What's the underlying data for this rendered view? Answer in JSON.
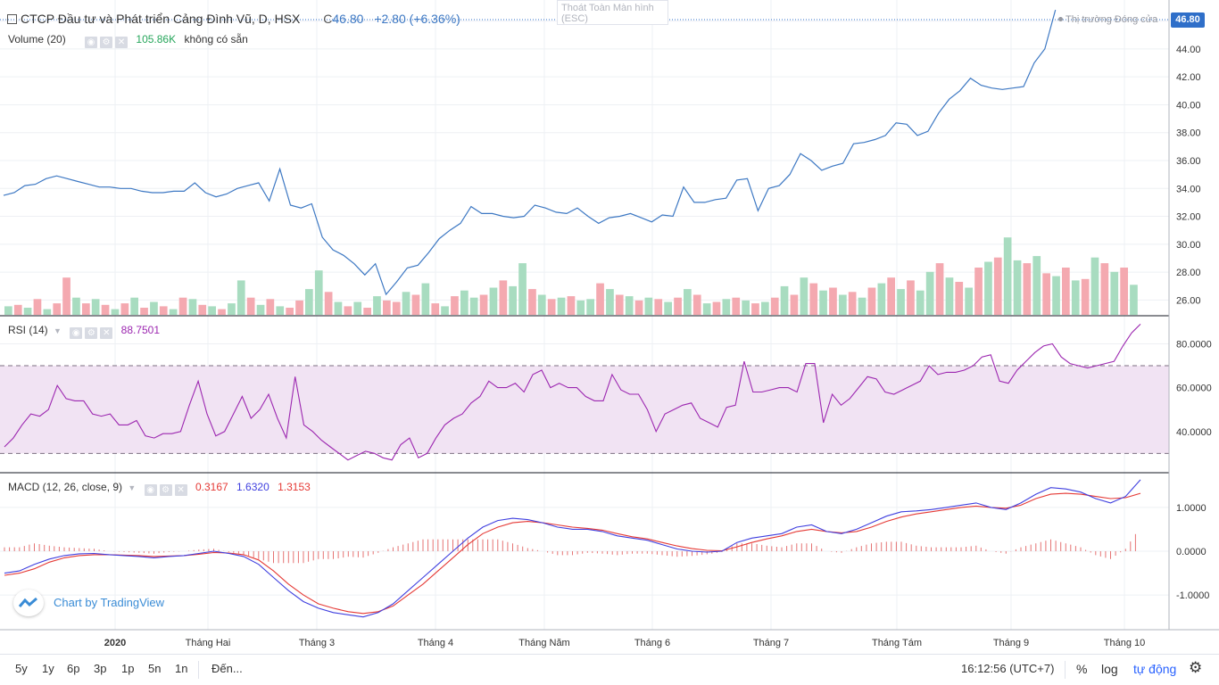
{
  "header": {
    "symbol_title": "CTCP Đầu tư và Phát triển Cảng Đình Vũ, D, HSX",
    "close_label": "C",
    "close_value": "46.80",
    "change": "+2.80 (+6.36%)",
    "market_status": "Thị trường Đóng cửa",
    "price_tag": "46.80",
    "exit_fullscreen": "Thoát Toàn Màn hình",
    "exit_fullscreen_key": "(ESC)"
  },
  "volume_legend": {
    "name": "Volume (20)",
    "value": "105.86K",
    "note": "không có sẵn"
  },
  "rsi_legend": {
    "name": "RSI (14)",
    "value": "88.7501"
  },
  "macd_legend": {
    "name": "MACD (12, 26, close, 9)",
    "hist": "0.3167",
    "macd": "1.6320",
    "signal": "1.3153"
  },
  "branding": {
    "text": "Chart by TradingView"
  },
  "toolbar": {
    "timeframes": [
      "5y",
      "1y",
      "6p",
      "3p",
      "1p",
      "5n",
      "1n"
    ],
    "goto": "Đến...",
    "clock": "16:12:56 (UTC+7)",
    "percent": "%",
    "log": "log",
    "auto": "tự động"
  },
  "colors": {
    "price_line": "#3d78c3",
    "rsi_line": "#9c27b0",
    "rsi_band": "#f1e3f3",
    "macd_line": "#3f3fdf",
    "signal_line": "#e53935",
    "vol_up": "#a8dcc0",
    "vol_down": "#f4a9b0"
  },
  "chart_data": [
    {
      "type": "line",
      "title": "CTCP Đầu tư và Phát triển Cảng Đình Vũ, D, HSX",
      "x_ticks": [
        "2020",
        "Tháng Hai",
        "Tháng 3",
        "Tháng 4",
        "Tháng Năm",
        "Tháng 6",
        "Tháng 7",
        "Tháng Tám",
        "Tháng 9",
        "Tháng 10"
      ],
      "y_ticks": [
        "26.00",
        "28.00",
        "30.00",
        "32.00",
        "34.00",
        "36.00",
        "38.00",
        "40.00",
        "42.00",
        "44.00",
        "46.00"
      ],
      "ylim": [
        25,
        47
      ],
      "x_range": [
        0,
        214
      ],
      "series": [
        {
          "x": [
            0,
            2,
            4,
            6,
            8,
            10,
            12,
            14,
            16,
            18,
            20,
            22,
            24,
            26,
            28,
            30,
            32,
            34,
            36,
            38,
            40,
            42,
            44,
            46,
            48,
            50,
            52,
            54,
            56,
            58,
            60,
            62,
            64,
            66,
            68,
            70,
            72,
            74,
            76,
            78,
            80,
            82,
            84,
            86,
            88,
            90,
            92,
            94,
            96,
            98,
            100,
            102,
            104,
            106,
            108,
            110,
            112,
            114,
            116,
            118,
            120,
            122,
            124,
            126,
            128,
            130,
            132,
            134,
            136,
            138,
            140,
            142,
            144,
            146,
            148,
            150,
            152,
            154,
            156,
            158,
            160,
            162,
            164,
            166,
            168,
            170,
            172,
            174,
            176,
            178,
            180,
            182,
            184,
            186,
            188,
            190,
            192,
            194,
            196,
            198,
            200,
            202,
            204,
            206,
            208,
            210,
            212,
            214
          ],
          "values": [
            33.5,
            33.7,
            34.2,
            34.3,
            34.7,
            34.9,
            34.7,
            34.5,
            34.3,
            34.1,
            34.1,
            34.0,
            34.0,
            33.8,
            33.7,
            33.7,
            33.8,
            33.8,
            34.4,
            33.7,
            33.4,
            33.6,
            34.0,
            34.2,
            34.4,
            33.1,
            35.4,
            32.8,
            32.6,
            32.9,
            30.5,
            29.6,
            29.2,
            28.6,
            27.8,
            28.6,
            26.4,
            27.3,
            28.3,
            28.5,
            29.4,
            30.4,
            31.0,
            31.5,
            32.7,
            32.2,
            32.2,
            32.0,
            31.9,
            32.0,
            32.8,
            32.6,
            32.3,
            32.2,
            32.6,
            32.0,
            31.5,
            31.9,
            32.0,
            32.2,
            31.9,
            31.6,
            32.1,
            32.0,
            34.1,
            33.0,
            33.0,
            33.2,
            33.3,
            34.6,
            34.7,
            32.4,
            34.0,
            34.2,
            35.0,
            36.5,
            36.0,
            35.3,
            35.6,
            35.8,
            37.2,
            37.3,
            37.5,
            37.8,
            38.7,
            38.6,
            37.8,
            38.1,
            39.4,
            40.4,
            41.0,
            41.9,
            41.4,
            41.2,
            41.1,
            41.2,
            41.3,
            43.0,
            44.0,
            46.8,
            46.8,
            46.8,
            46.8,
            46.8,
            46.8,
            46.8,
            46.8,
            46.8
          ]
        }
      ]
    },
    {
      "type": "bar",
      "title": "Volume (20)",
      "note": "up = green, down = red; heights in thousands of shares (estimated)",
      "values": [
        30,
        35,
        25,
        55,
        20,
        40,
        130,
        60,
        40,
        55,
        35,
        20,
        40,
        60,
        25,
        45,
        30,
        20,
        60,
        55,
        35,
        30,
        20,
        40,
        120,
        60,
        35,
        55,
        30,
        25,
        50,
        90,
        155,
        80,
        45,
        30,
        45,
        25,
        65,
        50,
        45,
        80,
        70,
        110,
        40,
        30,
        65,
        85,
        60,
        70,
        95,
        120,
        100,
        180,
        90,
        70,
        55,
        60,
        65,
        50,
        55,
        110,
        90,
        70,
        65,
        50,
        60,
        55,
        45,
        60,
        90,
        70,
        40,
        45,
        55,
        60,
        50,
        40,
        45,
        60,
        100,
        70,
        130,
        110,
        85,
        95,
        70,
        80,
        60,
        95,
        110,
        130,
        90,
        120,
        85,
        150,
        180,
        130,
        115,
        95,
        165,
        185,
        200,
        270,
        190,
        180,
        205,
        145,
        135,
        165,
        120,
        125,
        200,
        180,
        150,
        165,
        105
      ],
      "up": [
        true,
        false,
        true,
        false,
        true,
        false,
        false,
        true,
        false,
        true,
        false,
        true,
        false,
        true,
        false,
        true,
        false,
        true,
        false,
        true,
        false,
        true,
        false,
        true,
        true,
        false,
        true,
        false,
        true,
        false,
        false,
        true,
        true,
        false,
        true,
        false,
        true,
        false,
        true,
        false,
        false,
        true,
        false,
        true,
        false,
        true,
        false,
        true,
        true,
        false,
        true,
        false,
        true,
        true,
        false,
        true,
        false,
        true,
        false,
        true,
        true,
        false,
        true,
        false,
        true,
        false,
        true,
        false,
        true,
        false,
        true,
        false,
        true,
        false,
        true,
        false,
        true,
        false,
        true,
        false,
        true,
        false,
        true,
        false,
        true,
        false,
        true,
        false,
        true,
        false,
        true,
        false,
        true,
        false,
        true,
        true,
        false,
        true,
        false,
        true,
        false,
        true,
        false,
        true,
        true,
        false,
        true,
        false,
        true,
        false,
        true,
        false,
        true,
        false,
        true,
        false,
        true
      ]
    },
    {
      "type": "line",
      "title": "RSI (14)",
      "y_ticks": [
        "40.0000",
        "60.0000",
        "80.0000"
      ],
      "ylim": [
        22,
        92
      ],
      "bands": [
        30,
        70
      ],
      "values": [
        33,
        37,
        43,
        48,
        47,
        50,
        61,
        55,
        54,
        54,
        48,
        47,
        48,
        43,
        43,
        45,
        38,
        37,
        39,
        39,
        40,
        52,
        63,
        48,
        38,
        40,
        48,
        56,
        46,
        50,
        57,
        46,
        37,
        65,
        43,
        40,
        36,
        33,
        30,
        27,
        29,
        31,
        30,
        28,
        27,
        34,
        37,
        28,
        30,
        37,
        43,
        46,
        48,
        53,
        56,
        63,
        60,
        60,
        62,
        58,
        66,
        68,
        60,
        62,
        60,
        60,
        56,
        54,
        54,
        66,
        59,
        57,
        57,
        50,
        40,
        48,
        50,
        52,
        53,
        46,
        44,
        42,
        51,
        52,
        72,
        58,
        58,
        59,
        60,
        60,
        58,
        71,
        71,
        44,
        57,
        52,
        55,
        60,
        65,
        64,
        58,
        57,
        59,
        61,
        63,
        70,
        66,
        67,
        67,
        68,
        70,
        74,
        75,
        63,
        62,
        68,
        72,
        76,
        79,
        80,
        74,
        71,
        70,
        69,
        70,
        71,
        72,
        79,
        85,
        89
      ]
    },
    {
      "type": "line",
      "title": "MACD (12, 26, close, 9)",
      "y_ticks": [
        "-1.0000",
        "0.0000",
        "1.0000"
      ],
      "ylim": [
        -1.75,
        1.75
      ],
      "series": [
        {
          "name": "MACD",
          "values": [
            -0.5,
            -0.45,
            -0.3,
            -0.18,
            -0.1,
            -0.06,
            -0.05,
            -0.08,
            -0.1,
            -0.12,
            -0.15,
            -0.12,
            -0.1,
            -0.05,
            0.0,
            -0.05,
            -0.12,
            -0.3,
            -0.6,
            -0.9,
            -1.15,
            -1.3,
            -1.4,
            -1.45,
            -1.5,
            -1.4,
            -1.2,
            -0.9,
            -0.6,
            -0.3,
            0.0,
            0.3,
            0.55,
            0.7,
            0.75,
            0.72,
            0.65,
            0.55,
            0.5,
            0.5,
            0.45,
            0.35,
            0.3,
            0.25,
            0.15,
            0.05,
            0.0,
            -0.02,
            0.0,
            0.2,
            0.3,
            0.35,
            0.4,
            0.55,
            0.6,
            0.45,
            0.4,
            0.5,
            0.65,
            0.8,
            0.9,
            0.92,
            0.95,
            1.0,
            1.05,
            1.1,
            1.0,
            0.95,
            1.1,
            1.3,
            1.45,
            1.42,
            1.35,
            1.2,
            1.1,
            1.25,
            1.63
          ]
        },
        {
          "name": "Signal",
          "values": [
            -0.55,
            -0.5,
            -0.4,
            -0.25,
            -0.15,
            -0.1,
            -0.08,
            -0.08,
            -0.09,
            -0.1,
            -0.12,
            -0.11,
            -0.1,
            -0.07,
            -0.03,
            -0.04,
            -0.08,
            -0.2,
            -0.45,
            -0.75,
            -1.0,
            -1.2,
            -1.3,
            -1.38,
            -1.42,
            -1.38,
            -1.25,
            -1.0,
            -0.75,
            -0.45,
            -0.15,
            0.15,
            0.4,
            0.55,
            0.65,
            0.68,
            0.65,
            0.6,
            0.55,
            0.52,
            0.48,
            0.4,
            0.33,
            0.28,
            0.2,
            0.12,
            0.06,
            0.02,
            0.01,
            0.1,
            0.2,
            0.28,
            0.35,
            0.45,
            0.5,
            0.45,
            0.42,
            0.45,
            0.55,
            0.68,
            0.78,
            0.85,
            0.9,
            0.95,
            1.0,
            1.03,
            1.0,
            0.98,
            1.05,
            1.2,
            1.3,
            1.32,
            1.3,
            1.25,
            1.2,
            1.22,
            1.32
          ]
        }
      ]
    }
  ]
}
